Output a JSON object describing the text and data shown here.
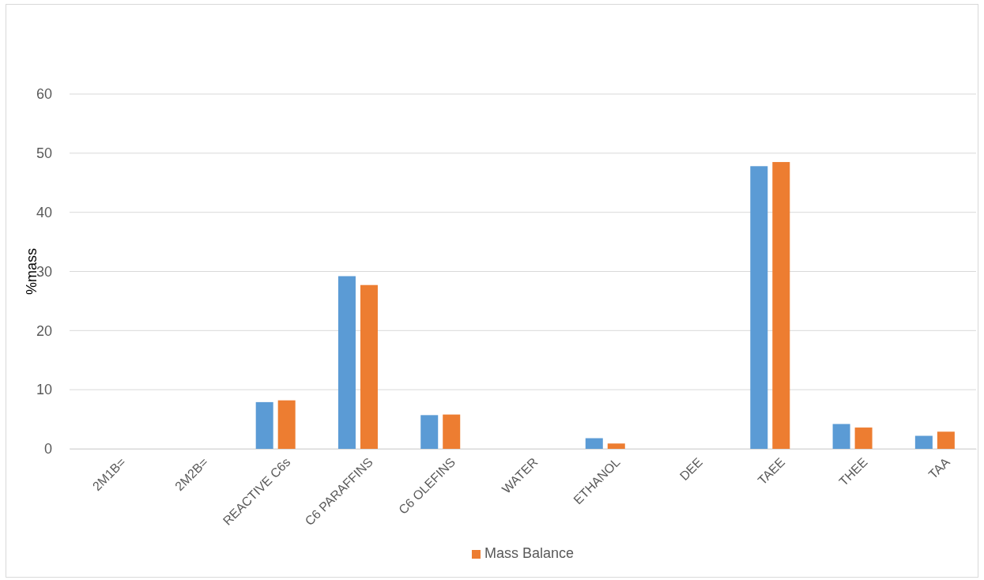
{
  "chart_data": {
    "type": "bar",
    "ylabel": "%mass",
    "categories": [
      "2M1B=",
      "2M2B=",
      "REACTIVE C6s",
      "C6 PARAFFINS",
      "C6 OLEFINS",
      "WATER",
      "ETHANOL",
      "DEE",
      "TAEE",
      "THEE",
      "TAA"
    ],
    "series": [
      {
        "color": "#5b9bd5",
        "values": [
          0,
          0,
          7.9,
          29.2,
          5.7,
          0,
          1.8,
          0,
          47.8,
          4.2,
          2.2
        ]
      },
      {
        "name": "Mass Balance",
        "color": "#ed7d31",
        "values": [
          0,
          0,
          8.2,
          27.7,
          5.8,
          0,
          0.9,
          0,
          48.5,
          3.6,
          2.9
        ]
      }
    ],
    "ylim": [
      0,
      60
    ],
    "yticks": [
      0,
      10,
      20,
      30,
      40,
      50,
      60
    ],
    "grid": "y",
    "legend": "bottom"
  }
}
